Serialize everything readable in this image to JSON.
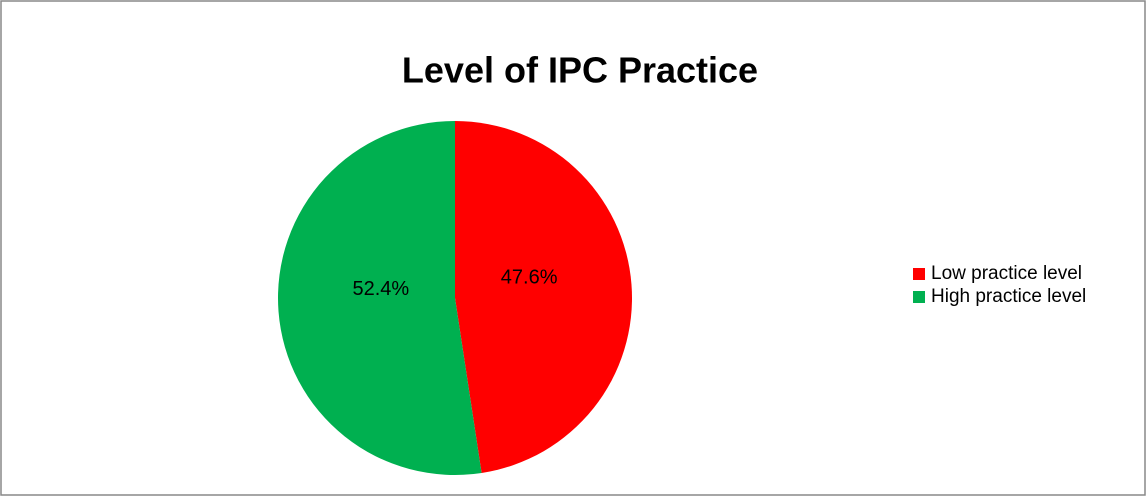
{
  "chart_data": {
    "type": "pie",
    "title": "Level of IPC Practice",
    "categories": [
      "Low practice level",
      "High practice level"
    ],
    "values": [
      47.6,
      52.4
    ],
    "value_labels": [
      "47.6%",
      "52.4%"
    ],
    "colors": [
      "#ff0000",
      "#00b050"
    ],
    "legend": "right"
  }
}
